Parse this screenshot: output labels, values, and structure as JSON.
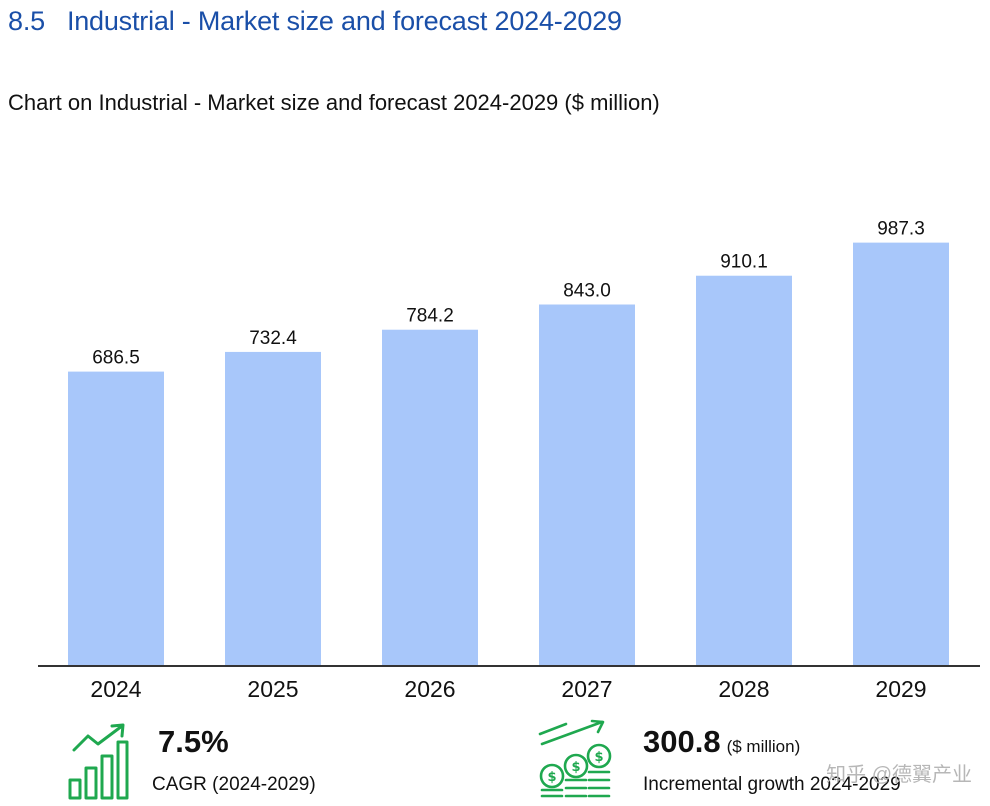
{
  "section": {
    "number": "8.5",
    "title": "Industrial - Market size and forecast 2024-2029"
  },
  "chart_title": "Chart on Industrial - Market size and forecast 2024-2029 ($ million)",
  "chart_data": {
    "type": "bar",
    "title": "Chart on Industrial - Market size and forecast 2024-2029 ($ million)",
    "categories": [
      "2024",
      "2025",
      "2026",
      "2027",
      "2028",
      "2029"
    ],
    "values": [
      686.5,
      732.4,
      784.2,
      843.0,
      910.1,
      987.3
    ],
    "value_labels": [
      "686.5",
      "732.4",
      "784.2",
      "843.0",
      "910.1",
      "987.3"
    ],
    "xlabel": "",
    "ylabel": "$ million",
    "ylim": [
      0,
      1110
    ],
    "grid": false,
    "legend": "none"
  },
  "kpis": {
    "cagr": {
      "value": "7.5%",
      "label": "CAGR (2024-2029)"
    },
    "incremental": {
      "value": "300.8",
      "unit": "($ million)",
      "label": "Incremental growth 2024-2029"
    }
  },
  "watermark": "知乎 @德翼产业",
  "colors": {
    "bar": "#a8c7fa",
    "title_blue": "#1a4fa8",
    "icon_green": "#1fa84f",
    "axis": "#333333"
  }
}
